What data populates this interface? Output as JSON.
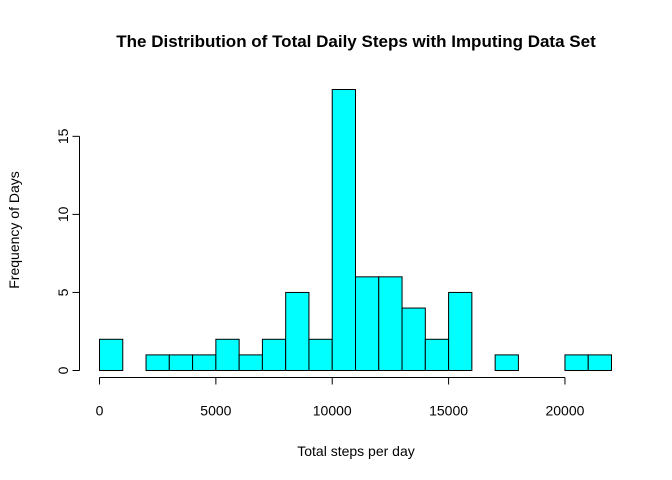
{
  "chart_data": {
    "type": "bar",
    "title": "The Distribution of Total Daily Steps with Imputing Data Set",
    "xlabel": "Total steps per day",
    "ylabel": "Frequency of Days",
    "bin_width": 1000,
    "bins": [
      {
        "start": 0,
        "end": 1000,
        "count": 2
      },
      {
        "start": 1000,
        "end": 2000,
        "count": 0
      },
      {
        "start": 2000,
        "end": 3000,
        "count": 1
      },
      {
        "start": 3000,
        "end": 4000,
        "count": 1
      },
      {
        "start": 4000,
        "end": 5000,
        "count": 1
      },
      {
        "start": 5000,
        "end": 6000,
        "count": 2
      },
      {
        "start": 6000,
        "end": 7000,
        "count": 1
      },
      {
        "start": 7000,
        "end": 8000,
        "count": 2
      },
      {
        "start": 8000,
        "end": 9000,
        "count": 5
      },
      {
        "start": 9000,
        "end": 10000,
        "count": 2
      },
      {
        "start": 10000,
        "end": 11000,
        "count": 18
      },
      {
        "start": 11000,
        "end": 12000,
        "count": 6
      },
      {
        "start": 12000,
        "end": 13000,
        "count": 6
      },
      {
        "start": 13000,
        "end": 14000,
        "count": 4
      },
      {
        "start": 14000,
        "end": 15000,
        "count": 2
      },
      {
        "start": 15000,
        "end": 16000,
        "count": 5
      },
      {
        "start": 16000,
        "end": 17000,
        "count": 0
      },
      {
        "start": 17000,
        "end": 18000,
        "count": 1
      },
      {
        "start": 18000,
        "end": 19000,
        "count": 0
      },
      {
        "start": 19000,
        "end": 20000,
        "count": 0
      },
      {
        "start": 20000,
        "end": 21000,
        "count": 1
      },
      {
        "start": 21000,
        "end": 22000,
        "count": 1
      }
    ],
    "xlim": [
      0,
      22000
    ],
    "ylim": [
      0,
      18
    ],
    "x_ticks": [
      0,
      5000,
      10000,
      15000,
      20000
    ],
    "y_ticks": [
      0,
      5,
      10,
      15
    ],
    "bar_color": "#00ffff",
    "grid": false
  }
}
